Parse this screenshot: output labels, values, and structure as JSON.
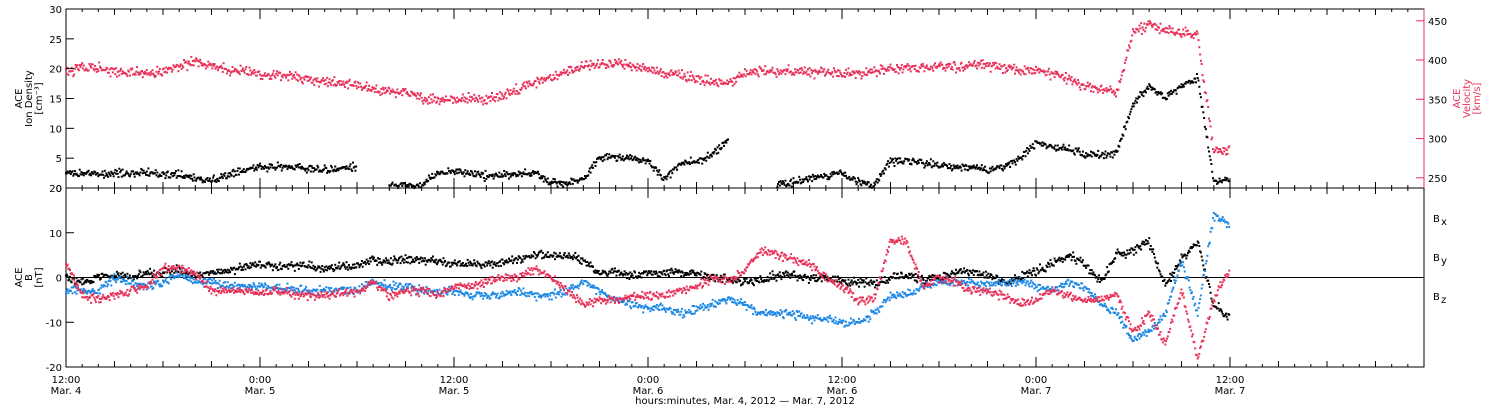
{
  "chart_data": {
    "type": "scatter",
    "colors": {
      "density": "#000000",
      "velocity": "#e8325a",
      "bx": "#000000",
      "by": "#1e88e5",
      "bz": "#e8325a"
    },
    "xaxis": {
      "range_hours": [
        0,
        84
      ],
      "tick_labels": [
        {
          "hours": 0,
          "time": "12:00",
          "date": "Mar. 4"
        },
        {
          "hours": 12,
          "time": "0:00",
          "date": "Mar. 5"
        },
        {
          "hours": 24,
          "time": "12:00",
          "date": "Mar. 5"
        },
        {
          "hours": 36,
          "time": "0:00",
          "date": "Mar. 6"
        },
        {
          "hours": 48,
          "time": "12:00",
          "date": "Mar. 6"
        },
        {
          "hours": 60,
          "time": "0:00",
          "date": "Mar. 7"
        },
        {
          "hours": 72,
          "time": "12:00",
          "date": "Mar. 7"
        }
      ],
      "title": "hours:minutes, Mar.  4, 2012 — Mar.  7, 2012"
    },
    "panels": [
      {
        "id": "density-velocity",
        "left_axis": {
          "title_lines": [
            "ACE",
            "Ion Density",
            "[cm⁻³]"
          ],
          "ylim": [
            0,
            30
          ],
          "ticks": [
            0,
            5,
            10,
            15,
            20,
            25,
            30
          ]
        },
        "right_axis": {
          "title_lines": [
            "ACE",
            "Velocity",
            "[km/s]"
          ],
          "ylim": [
            237,
            465
          ],
          "ticks": [
            250,
            300,
            350,
            400,
            450
          ]
        },
        "series": [
          {
            "key": "density",
            "axis": "left",
            "color": "#000000",
            "x": [
              0,
              1,
              2,
              3,
              4,
              5,
              6,
              7,
              8,
              9,
              10,
              11,
              12,
              13,
              14,
              15,
              16,
              17,
              18,
              19,
              20,
              21,
              22,
              23,
              24,
              25,
              26,
              27,
              28,
              29,
              30,
              31,
              32,
              33,
              34,
              35,
              36,
              37,
              38,
              39,
              40,
              41,
              42,
              43,
              44,
              45,
              46,
              47,
              48,
              49,
              50,
              51,
              52,
              53,
              54,
              55,
              56,
              57,
              58,
              59,
              60,
              61,
              62,
              63,
              64,
              65,
              66,
              67,
              68,
              69,
              70,
              71,
              72
            ],
            "y": [
              2.5,
              2.5,
              2.2,
              2.5,
              2.6,
              2.5,
              2.4,
              2.3,
              1.5,
              1.3,
              2.2,
              3.0,
              3.5,
              3.5,
              3.5,
              3.3,
              3.0,
              3.5,
              3.5,
              null,
              0.5,
              0.5,
              0.3,
              2.5,
              2.8,
              2.5,
              2.0,
              2.2,
              2.3,
              2.5,
              1.0,
              0.8,
              1.5,
              5.0,
              5.2,
              5.0,
              4.5,
              1.5,
              4.0,
              4.5,
              5.5,
              8.5,
              null,
              null,
              0.5,
              1.0,
              1.5,
              2.0,
              2.5,
              1.0,
              0.5,
              4.5,
              4.5,
              4.2,
              3.8,
              3.5,
              3.5,
              3.0,
              3.5,
              5.0,
              7.5,
              7.0,
              6.5,
              5.5,
              5.5,
              6.0,
              14.0,
              17.0,
              15.0,
              17.0,
              18.5,
              1.0,
              1.5
            ]
          },
          {
            "key": "velocity",
            "axis": "right",
            "color": "#e8325a",
            "x": [
              0,
              1,
              2,
              3,
              4,
              5,
              6,
              7,
              8,
              9,
              10,
              11,
              12,
              13,
              14,
              15,
              16,
              17,
              18,
              19,
              20,
              21,
              22,
              23,
              24,
              25,
              26,
              27,
              28,
              29,
              30,
              31,
              32,
              33,
              34,
              35,
              36,
              37,
              38,
              39,
              40,
              41,
              42,
              43,
              44,
              45,
              46,
              47,
              48,
              49,
              50,
              51,
              52,
              53,
              54,
              55,
              56,
              57,
              58,
              59,
              60,
              61,
              62,
              63,
              64,
              65,
              66,
              67,
              68,
              69,
              70,
              71,
              72
            ],
            "y": [
              385,
              390,
              390,
              386,
              384,
              382,
              386,
              392,
              398,
              392,
              388,
              385,
              382,
              380,
              378,
              376,
              372,
              370,
              368,
              362,
              360,
              358,
              352,
              348,
              350,
              352,
              350,
              356,
              362,
              372,
              378,
              385,
              392,
              395,
              396,
              392,
              388,
              384,
              380,
              376,
              372,
              370,
              383,
              385,
              385,
              386,
              384,
              385,
              382,
              383,
              386,
              388,
              390,
              390,
              392,
              391,
              394,
              392,
              390,
              388,
              385,
              382,
              375,
              368,
              364,
              358,
              435,
              445,
              440,
              435,
              430,
              285,
              285
            ]
          }
        ]
      },
      {
        "id": "magnetic-field",
        "left_axis": {
          "title_lines": [
            "ACE",
            "B",
            "[nT]"
          ],
          "ylim": [
            -20,
            20
          ],
          "ticks": [
            -20,
            -10,
            0,
            10,
            20
          ]
        },
        "zero_line": true,
        "legend": {
          "placement": "right",
          "items": [
            {
              "key": "bx",
              "main": "B",
              "sub": "x"
            },
            {
              "key": "by",
              "main": "B",
              "sub": "y"
            },
            {
              "key": "bz",
              "main": "B",
              "sub": "z"
            }
          ]
        },
        "series": [
          {
            "key": "bx",
            "color": "#000000",
            "x": [
              0,
              1,
              2,
              3,
              4,
              5,
              6,
              7,
              8,
              9,
              10,
              11,
              12,
              13,
              14,
              15,
              16,
              17,
              18,
              19,
              20,
              21,
              22,
              23,
              24,
              25,
              26,
              27,
              28,
              29,
              30,
              31,
              32,
              33,
              34,
              35,
              36,
              37,
              38,
              39,
              40,
              41,
              42,
              43,
              44,
              45,
              46,
              47,
              48,
              49,
              50,
              51,
              52,
              53,
              54,
              55,
              56,
              57,
              58,
              59,
              60,
              61,
              62,
              63,
              64,
              65,
              66,
              67,
              68,
              69,
              70,
              71,
              72
            ],
            "y": [
              0,
              -1,
              0,
              0.5,
              0,
              1,
              1,
              1.5,
              0.5,
              1,
              1.5,
              2.5,
              3,
              2.5,
              2.5,
              2.5,
              2,
              2.5,
              2.5,
              4,
              3.5,
              4,
              4,
              3.5,
              3,
              3,
              3,
              3.5,
              4,
              5,
              5,
              4.5,
              4,
              1,
              1,
              0.5,
              1,
              1,
              1,
              1,
              0,
              -0.5,
              -1,
              -0.5,
              0.5,
              0.5,
              0,
              0,
              -1,
              -1,
              -1.5,
              0,
              0.5,
              -0.5,
              0,
              1,
              1.5,
              0.5,
              -1,
              0,
              1.5,
              3,
              5,
              3,
              -1,
              5,
              6,
              8,
              -2,
              4,
              8,
              -6,
              -9
            ]
          },
          {
            "key": "by",
            "color": "#1e88e5",
            "x": [
              0,
              1,
              2,
              3,
              4,
              5,
              6,
              7,
              8,
              9,
              10,
              11,
              12,
              13,
              14,
              15,
              16,
              17,
              18,
              19,
              20,
              21,
              22,
              23,
              24,
              25,
              26,
              27,
              28,
              29,
              30,
              31,
              32,
              33,
              34,
              35,
              36,
              37,
              38,
              39,
              40,
              41,
              42,
              43,
              44,
              45,
              46,
              47,
              48,
              49,
              50,
              51,
              52,
              53,
              54,
              55,
              56,
              57,
              58,
              59,
              60,
              61,
              62,
              63,
              64,
              65,
              66,
              67,
              68,
              69,
              70,
              71,
              72
            ],
            "y": [
              -3,
              -3,
              -3,
              0,
              -1,
              -2,
              -1,
              1,
              -1,
              -1,
              -2,
              -2,
              -2,
              -2.5,
              -2.5,
              -3,
              -3,
              -3,
              -3,
              -1,
              -2,
              -2,
              -3,
              -3,
              -3,
              -4,
              -4,
              -4,
              -3,
              -4,
              -4,
              -3,
              -1,
              -3,
              -5,
              -6,
              -7,
              -7,
              -8,
              -7,
              -6,
              -5,
              -6,
              -8,
              -8,
              -8,
              -9,
              -9,
              -10,
              -10,
              -8,
              -4,
              -4,
              -2,
              -1,
              -1,
              -1,
              -2,
              -1,
              -1,
              -2,
              -3,
              -1,
              -2,
              -6,
              -8,
              -14,
              -12,
              -8,
              4,
              -8,
              14,
              12
            ]
          },
          {
            "key": "bz",
            "color": "#e8325a",
            "x": [
              0,
              1,
              2,
              3,
              4,
              5,
              6,
              7,
              8,
              9,
              10,
              11,
              12,
              13,
              14,
              15,
              16,
              17,
              18,
              19,
              20,
              21,
              22,
              23,
              24,
              25,
              26,
              27,
              28,
              29,
              30,
              31,
              32,
              33,
              34,
              35,
              36,
              37,
              38,
              39,
              40,
              41,
              42,
              43,
              44,
              45,
              46,
              47,
              48,
              49,
              50,
              51,
              52,
              53,
              54,
              55,
              56,
              57,
              58,
              59,
              60,
              61,
              62,
              63,
              64,
              65,
              66,
              67,
              68,
              69,
              70,
              71,
              72
            ],
            "y": [
              3,
              -4,
              -5,
              -4,
              -3,
              -2,
              2,
              2,
              1,
              -3,
              -3,
              -3,
              -3.5,
              -3,
              -3.5,
              -4,
              -4,
              -3.5,
              -3.5,
              -1,
              -4,
              -3,
              -3,
              -4,
              -2,
              -2,
              -1,
              0,
              0,
              2,
              0,
              -3,
              -6,
              -5,
              -5,
              -4,
              -4,
              -4,
              -3,
              -2,
              0,
              -1,
              2,
              6,
              5,
              4,
              3,
              0,
              -2,
              -5,
              -5,
              8,
              8,
              -2,
              0,
              -1,
              -3,
              -3,
              -4,
              -6,
              -5,
              -3,
              -4,
              -5,
              -5,
              -4,
              -12,
              -8,
              -15,
              -3,
              -18,
              -5,
              2
            ]
          }
        ]
      }
    ]
  }
}
